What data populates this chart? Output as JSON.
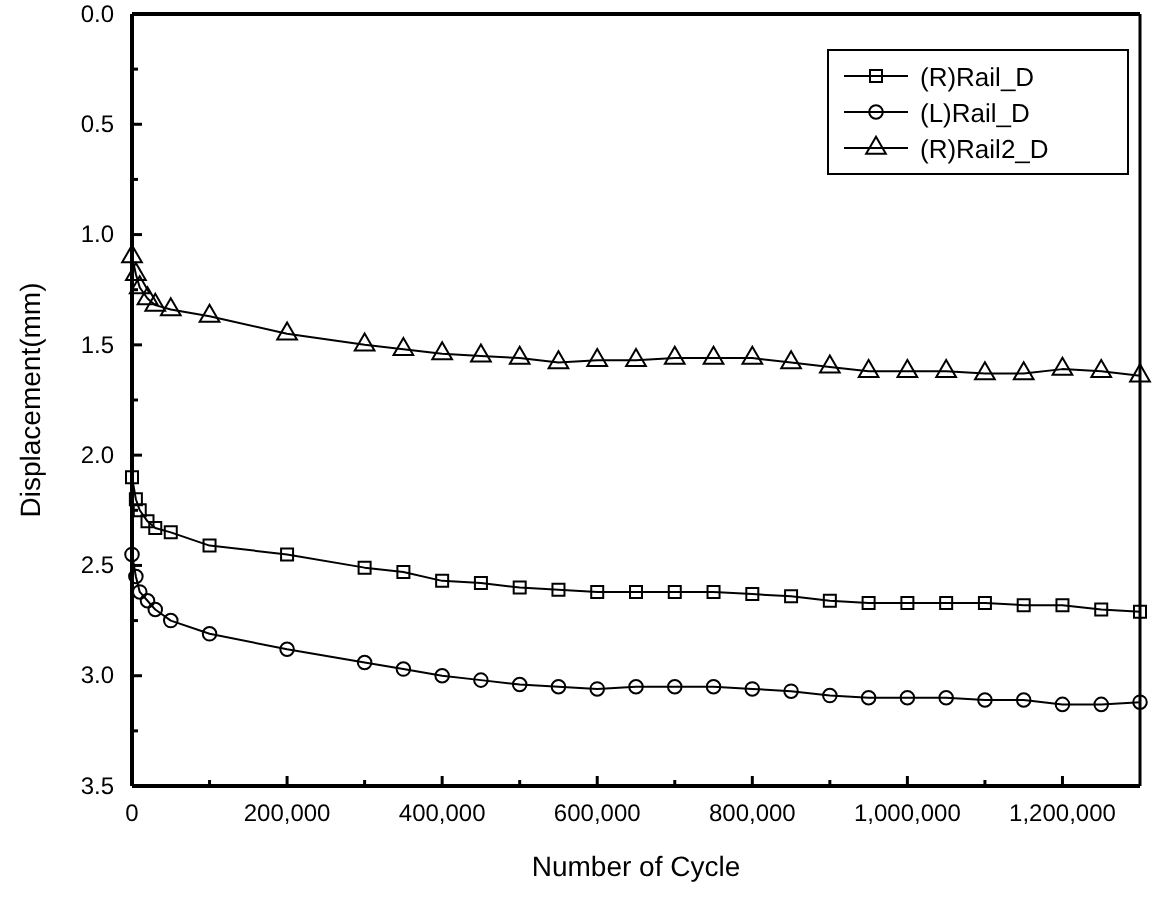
{
  "chart_data": {
    "type": "line",
    "xlabel": "Number of Cycle",
    "ylabel": "Displacement(mm)",
    "x": [
      0,
      5000,
      10000,
      20000,
      30000,
      50000,
      100000,
      200000,
      300000,
      350000,
      400000,
      450000,
      500000,
      550000,
      600000,
      650000,
      700000,
      750000,
      800000,
      850000,
      900000,
      950000,
      1000000,
      1050000,
      1100000,
      1150000,
      1200000,
      1250000,
      1300000
    ],
    "series": [
      {
        "name": "(R)Rail_D",
        "color": "#000000",
        "marker": "square",
        "values": [
          2.1,
          2.2,
          2.25,
          2.3,
          2.33,
          2.35,
          2.41,
          2.45,
          2.51,
          2.53,
          2.57,
          2.58,
          2.6,
          2.61,
          2.62,
          2.62,
          2.62,
          2.62,
          2.63,
          2.64,
          2.66,
          2.67,
          2.67,
          2.67,
          2.67,
          2.68,
          2.68,
          2.7,
          2.71
        ]
      },
      {
        "name": "(L)Rail_D",
        "color": "#000000",
        "marker": "circle",
        "values": [
          2.45,
          2.55,
          2.62,
          2.66,
          2.7,
          2.75,
          2.81,
          2.88,
          2.94,
          2.97,
          3.0,
          3.02,
          3.04,
          3.05,
          3.06,
          3.05,
          3.05,
          3.05,
          3.06,
          3.07,
          3.09,
          3.1,
          3.1,
          3.1,
          3.11,
          3.11,
          3.13,
          3.13,
          3.12
        ]
      },
      {
        "name": "(R)Rail2_D",
        "color": "#000000",
        "marker": "triangle",
        "values": [
          1.1,
          1.18,
          1.24,
          1.29,
          1.32,
          1.34,
          1.37,
          1.45,
          1.5,
          1.52,
          1.54,
          1.55,
          1.56,
          1.58,
          1.57,
          1.57,
          1.56,
          1.56,
          1.56,
          1.58,
          1.6,
          1.62,
          1.62,
          1.62,
          1.63,
          1.63,
          1.61,
          1.62,
          1.64
        ]
      }
    ],
    "xlim": [
      0,
      1300000
    ],
    "xticks": [
      {
        "value": 0,
        "label": "0"
      },
      {
        "value": 100000,
        "label": null
      },
      {
        "value": 200000,
        "label": "200,000"
      },
      {
        "value": 300000,
        "label": null
      },
      {
        "value": 400000,
        "label": "400,000"
      },
      {
        "value": 500000,
        "label": null
      },
      {
        "value": 600000,
        "label": "600,000"
      },
      {
        "value": 700000,
        "label": null
      },
      {
        "value": 800000,
        "label": "800,000"
      },
      {
        "value": 900000,
        "label": null
      },
      {
        "value": 1000000,
        "label": "1,000,000"
      },
      {
        "value": 1100000,
        "label": null
      },
      {
        "value": 1200000,
        "label": "1,200,000"
      }
    ],
    "ylim": [
      3.5,
      0
    ],
    "yticks": [
      {
        "value": 0,
        "label": "0.0"
      },
      {
        "value": 0.25,
        "label": null
      },
      {
        "value": 0.5,
        "label": "0.5"
      },
      {
        "value": 0.75,
        "label": null
      },
      {
        "value": 1,
        "label": "1.0"
      },
      {
        "value": 1.25,
        "label": null
      },
      {
        "value": 1.5,
        "label": "1.5"
      },
      {
        "value": 1.75,
        "label": null
      },
      {
        "value": 2,
        "label": "2.0"
      },
      {
        "value": 2.25,
        "label": null
      },
      {
        "value": 2.5,
        "label": "2.5"
      },
      {
        "value": 2.75,
        "label": null
      },
      {
        "value": 3,
        "label": "3.0"
      },
      {
        "value": 3.25,
        "label": null
      },
      {
        "value": 3.5,
        "label": "3.5"
      }
    ],
    "legend": "top right",
    "line_style": "solid",
    "grid": false
  }
}
